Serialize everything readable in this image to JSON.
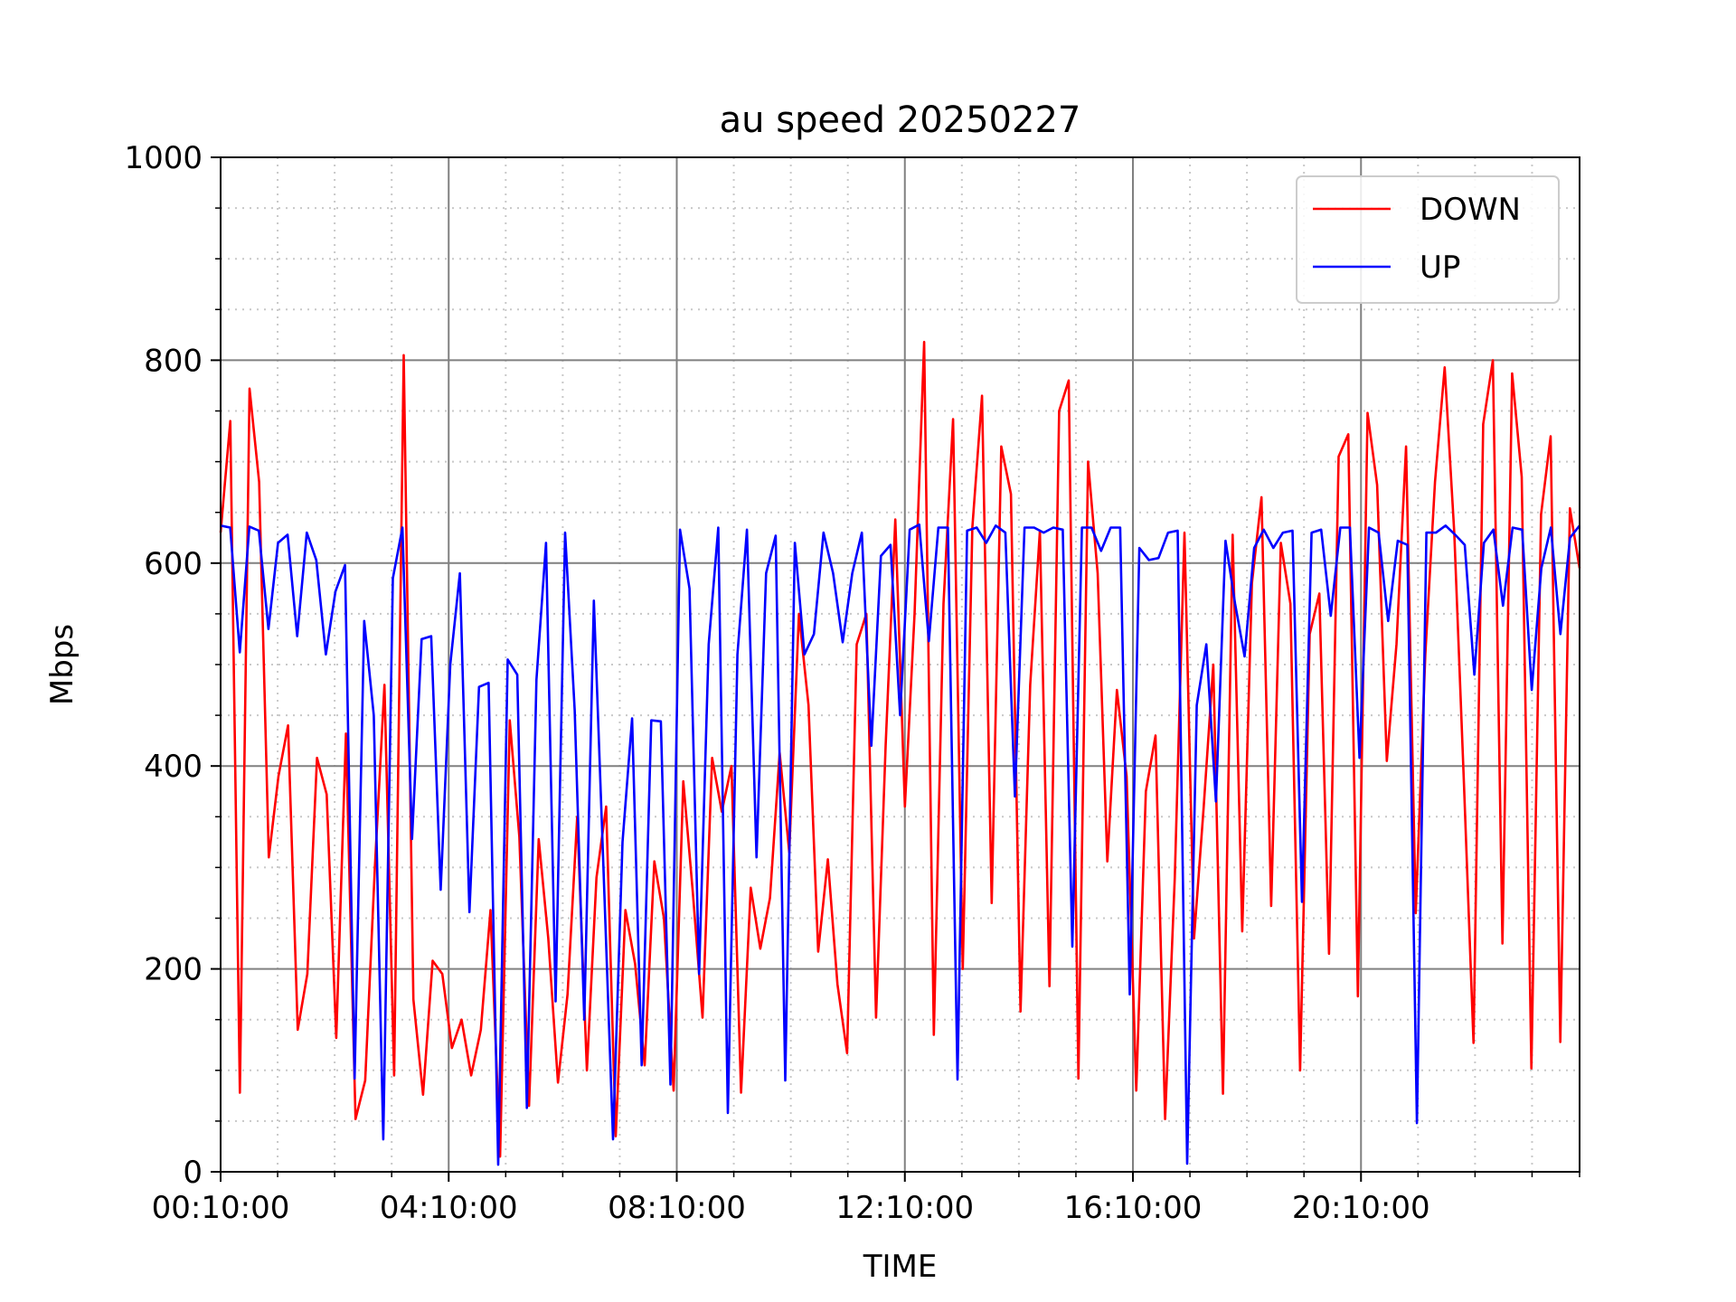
{
  "chart_data": {
    "type": "line",
    "title": "au speed 20250227",
    "xlabel": "TIME",
    "ylabel": "Mbps",
    "ylim": [
      0,
      1000
    ],
    "yticks": [
      "0",
      "200",
      "400",
      "600",
      "800",
      "1000"
    ],
    "xticks": [
      "00:10:00",
      "04:10:00",
      "08:10:00",
      "12:10:00",
      "16:10:00",
      "20:10:00"
    ],
    "x_minutes_range": [
      10,
      1440
    ],
    "grid": true,
    "legend_position": "top-right",
    "series": [
      {
        "name": "DOWN",
        "color": "#ff0000",
        "values": [
          630,
          740,
          78,
          772,
          680,
          310,
          390,
          440,
          140,
          195,
          408,
          372,
          132,
          432,
          52,
          90,
          300,
          480,
          95,
          805,
          170,
          76,
          208,
          195,
          122,
          150,
          95,
          140,
          258,
          15,
          445,
          330,
          65,
          328,
          230,
          88,
          175,
          350,
          100,
          290,
          360,
          35,
          258,
          205,
          105,
          306,
          250,
          80,
          385,
          275,
          152,
          408,
          355,
          400,
          78,
          280,
          220,
          270,
          413,
          315,
          550,
          460,
          217,
          308,
          185,
          117,
          520,
          550,
          152,
          420,
          643,
          360,
          550,
          818,
          135,
          560,
          742,
          200,
          635,
          765,
          265,
          715,
          668,
          158,
          480,
          632,
          183,
          750,
          780,
          92,
          700,
          590,
          306,
          475,
          390,
          80,
          375,
          430,
          52,
          290,
          630,
          230,
          360,
          500,
          77,
          628,
          237,
          580,
          665,
          262,
          620,
          560,
          100,
          530,
          570,
          215,
          705,
          727,
          173,
          748,
          677,
          405,
          520,
          715,
          255,
          510,
          680,
          793,
          630,
          383,
          127,
          737,
          800,
          225,
          787,
          685,
          102,
          648,
          725,
          128,
          654,
          595
        ]
      },
      {
        "name": "UP",
        "color": "#0000ff",
        "values": [
          637,
          635,
          512,
          636,
          632,
          535,
          620,
          628,
          528,
          630,
          603,
          510,
          572,
          598,
          92,
          543,
          450,
          32,
          585,
          635,
          328,
          525,
          528,
          278,
          500,
          590,
          256,
          478,
          482,
          7,
          505,
          490,
          63,
          485,
          620,
          168,
          630,
          455,
          150,
          563,
          300,
          32,
          325,
          447,
          105,
          445,
          444,
          86,
          633,
          575,
          195,
          520,
          635,
          58,
          510,
          633,
          310,
          590,
          627,
          90,
          620,
          510,
          530,
          630,
          590,
          522,
          590,
          630,
          420,
          607,
          618,
          450,
          633,
          638,
          523,
          635,
          635,
          91,
          632,
          635,
          620,
          637,
          630,
          370,
          635,
          635,
          630,
          635,
          633,
          222,
          635,
          635,
          612,
          635,
          635,
          175,
          615,
          603,
          605,
          630,
          632,
          8,
          460,
          520,
          365,
          622,
          560,
          508,
          615,
          633,
          615,
          630,
          632,
          266,
          630,
          633,
          548,
          635,
          635,
          408,
          635,
          630,
          543,
          622,
          618,
          48,
          630,
          630,
          637,
          628,
          618,
          490,
          620,
          633,
          558,
          635,
          633,
          475,
          595,
          635,
          530,
          625,
          637
        ]
      }
    ]
  }
}
